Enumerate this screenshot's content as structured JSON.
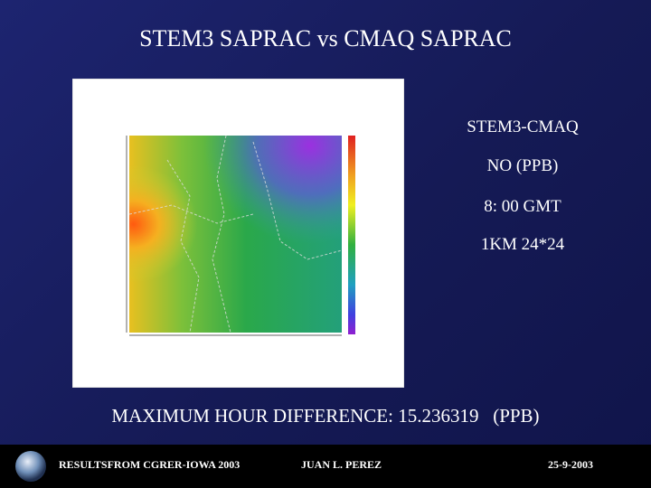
{
  "title": "STEM3 SAPRAC vs CMAQ SAPRAC",
  "panel": {
    "lines": [
      "STEM3-CMAQ",
      "NO (PPB)",
      "8: 00 GMT",
      "1KM 24*24"
    ]
  },
  "caption": "MAXIMUM HOUR DIFFERENCE: 15.236319   (PPB)",
  "footer": {
    "source": "RESULTSFROM CGRER-IOWA 2003",
    "author": "JUAN L. PEREZ",
    "date": "25-9-2003"
  }
}
